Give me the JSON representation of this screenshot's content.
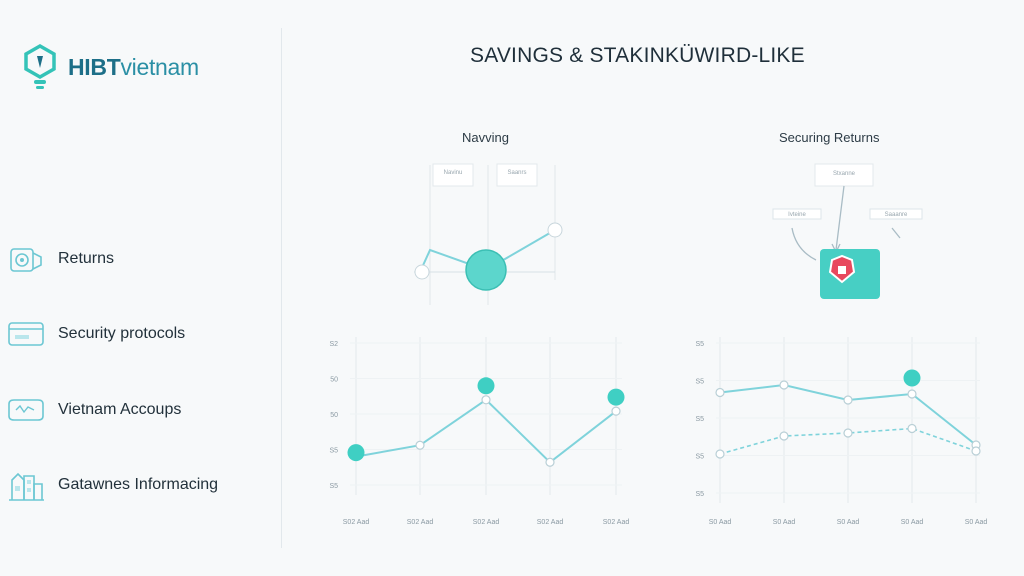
{
  "brand": {
    "name_part1": "HIBT",
    "name_part2": "vietnam"
  },
  "sidebar": {
    "items": [
      {
        "label": "Returns",
        "icon": "gear-cube-icon"
      },
      {
        "label": "Security protocols",
        "icon": "card-icon"
      },
      {
        "label": "Vietnam Accoups",
        "icon": "wallet-icon"
      },
      {
        "label": "Gatawnes Informacing",
        "icon": "building-icon"
      }
    ]
  },
  "main": {
    "title": "SAVINGS & STAKINKÜWIRD-LIKE",
    "left_panel": {
      "title": "Navving",
      "note1": "Navinu",
      "note2": "Saanrs"
    },
    "right_panel": {
      "title": "Securing Returns",
      "note_top": "Stxanne",
      "note_left": "Ivteine",
      "note_right": "Saaanre"
    }
  },
  "colors": {
    "accent": "#3fcfc3",
    "line": "#7fd3db",
    "alert": "#e8485e",
    "text": "#22313b"
  },
  "chart_data": [
    {
      "type": "line",
      "title": "",
      "categories": [
        "S02 Aad",
        "S02 Aad",
        "S02 Aad",
        "S02 Aad",
        "S02 Aad"
      ],
      "y_ticks": [
        "S2",
        "50",
        "50",
        "S5",
        "S5"
      ],
      "series": [
        {
          "values": [
            1.0,
            1.4,
            3.0,
            0.8,
            2.6
          ]
        }
      ],
      "highlighted_points": [
        0,
        2,
        4
      ],
      "ylim": [
        0,
        5
      ]
    },
    {
      "type": "line",
      "title": "",
      "categories": [
        "S0 Aad",
        "S0 Aad",
        "S0 Aad",
        "S0 Aad",
        "S0 Aad"
      ],
      "y_ticks": [
        "S5",
        "S5",
        "S5",
        "S5",
        "S5"
      ],
      "series": [
        {
          "values": [
            3.35,
            3.6,
            3.1,
            3.3,
            1.6
          ]
        },
        {
          "values": [
            1.3,
            1.9,
            2.0,
            2.15,
            1.4
          ]
        }
      ],
      "highlighted_points": [
        3
      ],
      "ylim": [
        0,
        5
      ]
    }
  ]
}
